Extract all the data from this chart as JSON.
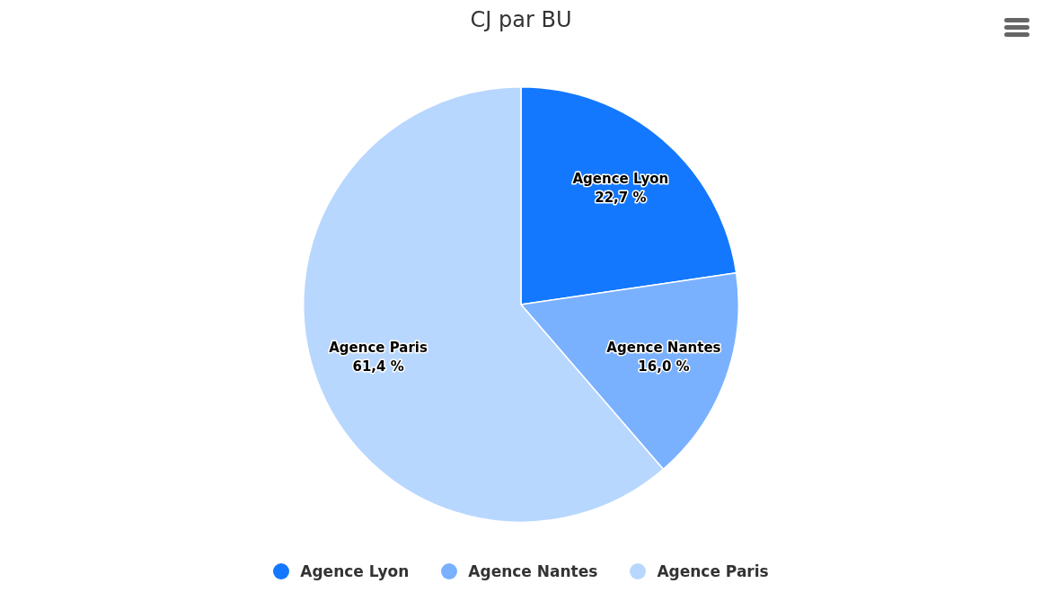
{
  "chart_data": {
    "type": "pie",
    "title": "CJ par BU",
    "categories": [
      "Agence Lyon",
      "Agence Nantes",
      "Agence Paris"
    ],
    "values": [
      22.7,
      16.0,
      61.4
    ],
    "value_labels": [
      "22,7 %",
      "16,0 %",
      "61,4 %"
    ],
    "colors": [
      "#1478ff",
      "#7ab1ff",
      "#b8d7ff"
    ],
    "legend": "bottom"
  }
}
